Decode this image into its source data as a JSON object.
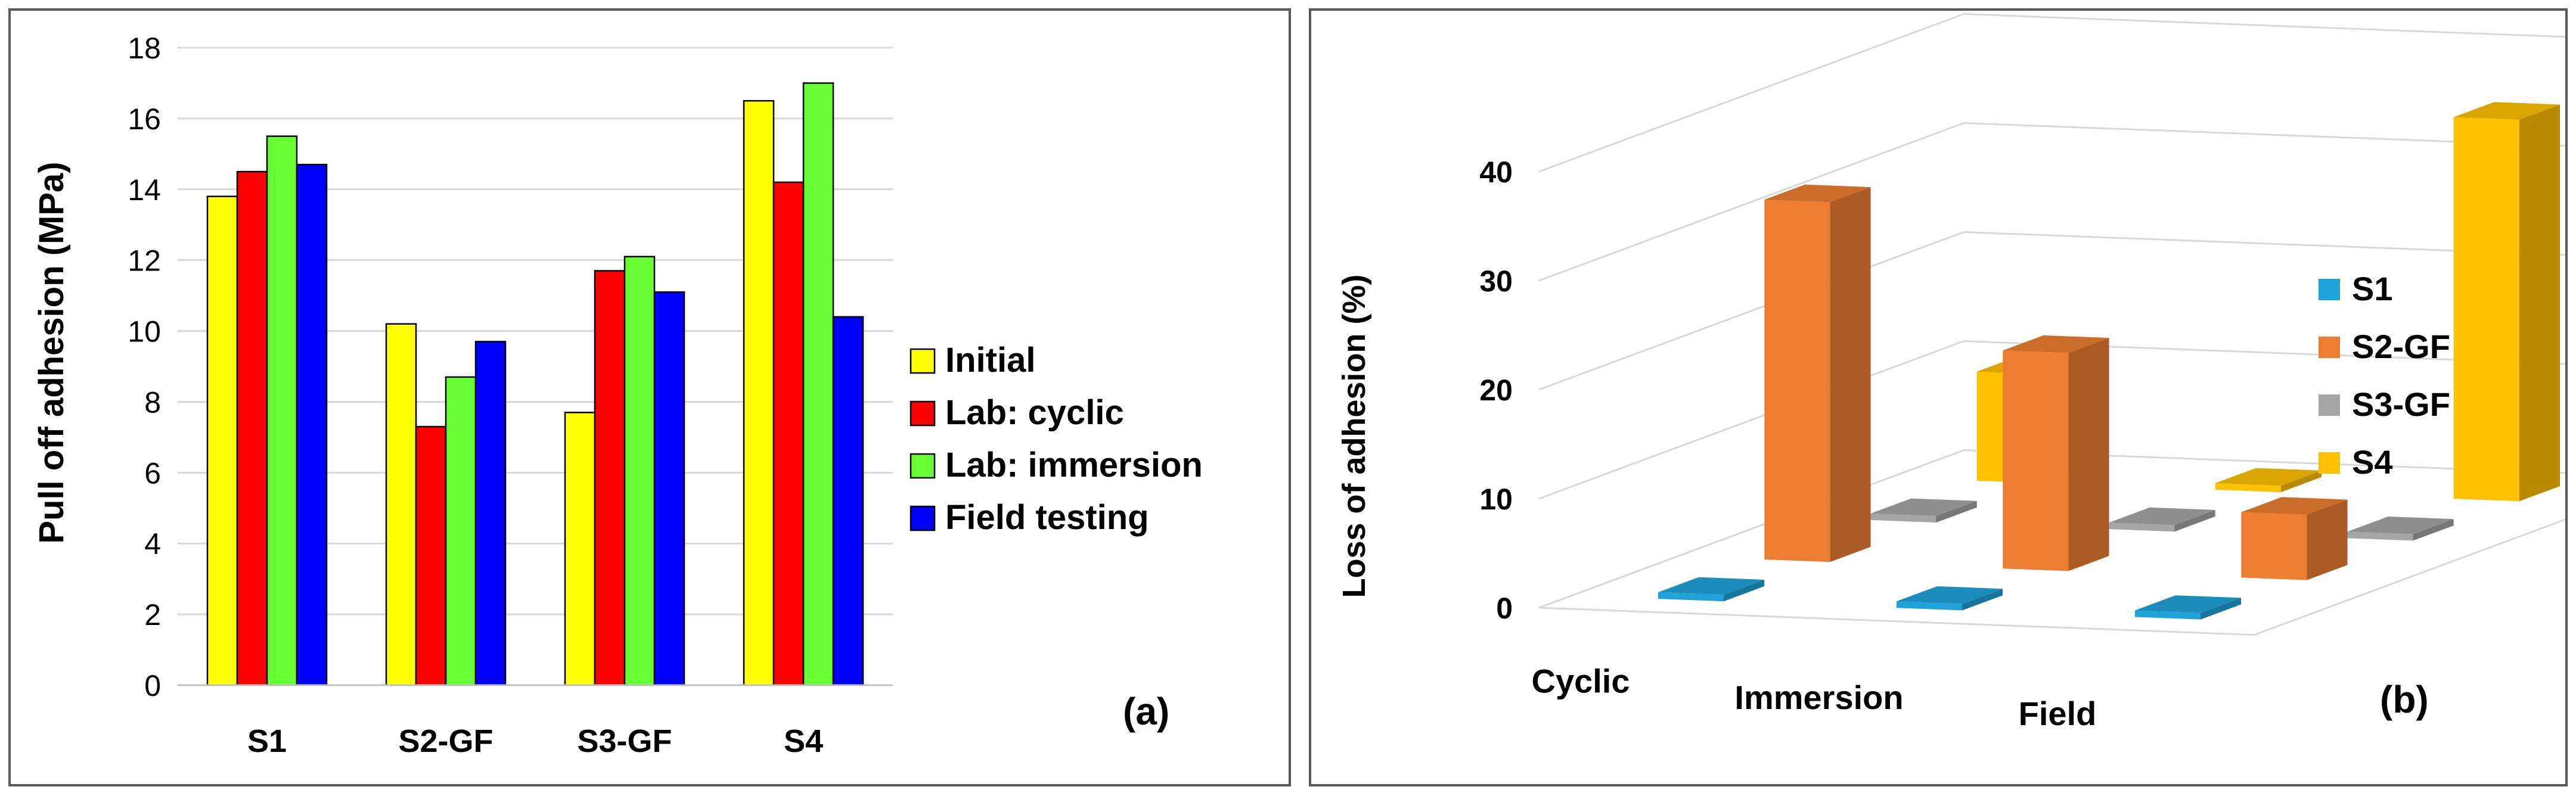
{
  "chart_data": [
    {
      "type": "bar",
      "panel_label": "(a)",
      "ylabel": "Pull off adhesion (MPa)",
      "ylim": [
        0,
        18
      ],
      "ytick_step": 2,
      "grid": true,
      "legend_position": "right",
      "categories": [
        "S1",
        "S2-GF",
        "S3-GF",
        "S4"
      ],
      "series": [
        {
          "name": "Initial",
          "color": "#ffff00",
          "values": [
            13.8,
            10.2,
            7.7,
            16.5
          ]
        },
        {
          "name": "Lab: cyclic",
          "color": "#ff0000",
          "values": [
            14.5,
            7.3,
            11.7,
            14.2
          ]
        },
        {
          "name": "Lab: immersion",
          "color": "#66ff33",
          "values": [
            15.5,
            8.7,
            12.1,
            17.0
          ]
        },
        {
          "name": "Field testing",
          "color": "#0000ff",
          "values": [
            14.7,
            9.7,
            11.1,
            10.4
          ]
        }
      ]
    },
    {
      "type": "bar3d",
      "panel_label": "(b)",
      "ylabel": "Loss  of adhesion (%)",
      "ylim": [
        0,
        40
      ],
      "ytick_step": 10,
      "grid": true,
      "legend_position": "right",
      "categories": [
        "Cyclic",
        "Immersion",
        "Field"
      ],
      "series": [
        {
          "name": "S1",
          "color": "#1fa3d9",
          "values": [
            0,
            0,
            0
          ]
        },
        {
          "name": "S2-GF",
          "color": "#ed7d31",
          "values": [
            33,
            20,
            6
          ]
        },
        {
          "name": "S3-GF",
          "color": "#a5a5a5",
          "values": [
            0,
            0,
            0
          ]
        },
        {
          "name": "S4",
          "color": "#ffc000",
          "values": [
            10,
            0,
            35
          ]
        }
      ]
    }
  ]
}
